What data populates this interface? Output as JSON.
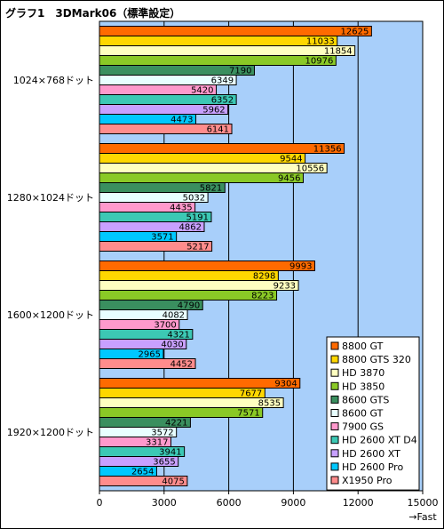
{
  "chart_data": {
    "type": "bar",
    "orientation": "horizontal",
    "title": "グラフ1　3DMark06（標準設定）",
    "xlabel": "→Fast",
    "xlim": [
      0,
      15000
    ],
    "xticks": [
      "0",
      "3000",
      "6000",
      "9000",
      "12000",
      "15000"
    ],
    "grid": true,
    "legend_position": "bottom-right",
    "categories": [
      "1024×768ドット",
      "1280×1024ドット",
      "1600×1200ドット",
      "1920×1200ドット"
    ],
    "series": [
      {
        "name": "8800 GT",
        "color": "#ff6a00",
        "values": [
          12625,
          11356,
          9993,
          9304
        ]
      },
      {
        "name": "8800 GTS 320",
        "color": "#ffd700",
        "values": [
          11033,
          9544,
          8298,
          7677
        ]
      },
      {
        "name": "HD 3870",
        "color": "#ffffc0",
        "values": [
          11854,
          10556,
          9233,
          8535
        ]
      },
      {
        "name": "HD 3850",
        "color": "#8ac926",
        "values": [
          10976,
          9456,
          8223,
          7571
        ]
      },
      {
        "name": "8600 GTS",
        "color": "#3a8f5f",
        "values": [
          7190,
          5821,
          4790,
          4221
        ]
      },
      {
        "name": "8600 GT",
        "color": "#e8ffff",
        "values": [
          6349,
          5032,
          4082,
          3572
        ]
      },
      {
        "name": "7900 GS",
        "color": "#ff99cc",
        "values": [
          5420,
          4435,
          3700,
          3317
        ]
      },
      {
        "name": "HD 2600 XT D4",
        "color": "#3cc8b4",
        "values": [
          6352,
          5191,
          4321,
          3941
        ]
      },
      {
        "name": "HD 2600 XT",
        "color": "#c8a0ff",
        "values": [
          5962,
          4862,
          4030,
          3655
        ]
      },
      {
        "name": "HD 2600 Pro",
        "color": "#00c8ff",
        "values": [
          4473,
          3571,
          2965,
          2654
        ]
      },
      {
        "name": "X1950 Pro",
        "color": "#ff8c8c",
        "values": [
          6141,
          5217,
          4452,
          4075
        ]
      }
    ]
  },
  "colors": {
    "plot_background": "#a8cffa",
    "gridline": "#000000",
    "legend_background": "#ffffff"
  }
}
